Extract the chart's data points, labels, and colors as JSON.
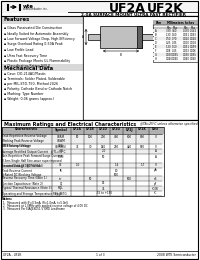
{
  "title_left": "UF2A",
  "title_right": "UF2K",
  "subtitle": "2.0A SURFACE MOUNT ULTRA FAST RECTIFIER",
  "bg_color": "#ffffff",
  "features_title": "Features",
  "features": [
    "Glass Passivated Die Construction",
    "Ideally Suited for Automatic Assembly",
    "Low Forward Voltage Drop, High Efficiency",
    "Surge Overload Rating 0-50A Peak",
    "Low Profile Lead",
    "Ultra Fast Recovery Time",
    "Plastic Package Meets UL Flammability",
    "Classification Rating 94V-0"
  ],
  "mech_title": "Mechanical Data",
  "mech_items": [
    "Case: DO-214AC/Plastic",
    "Terminals: Solder Plated, Solderable",
    "per MIL-STD-750, Method 2026",
    "Polarity: Cathode Band or Cathode Notch",
    "Marking: Type Number",
    "Weight: 0.06 grams (approx.)"
  ],
  "table_title": "Maximum Ratings and Electrical Characteristics",
  "table_note": "@TA=25°C unless otherwise specified",
  "col_headers": [
    "Characteristic",
    "Symbol",
    "UF2A",
    "UF2B",
    "UF2D",
    "UF2G",
    "UF2J",
    "UF2K",
    "Unit"
  ],
  "footer_left": "UF2A - UF2K",
  "footer_center": "1 of 3",
  "footer_right": "2008 WTE Semiconductor",
  "gray_header": "#b0b0b0",
  "gray_section": "#d8d8d8",
  "gray_row": "#eeeeee"
}
